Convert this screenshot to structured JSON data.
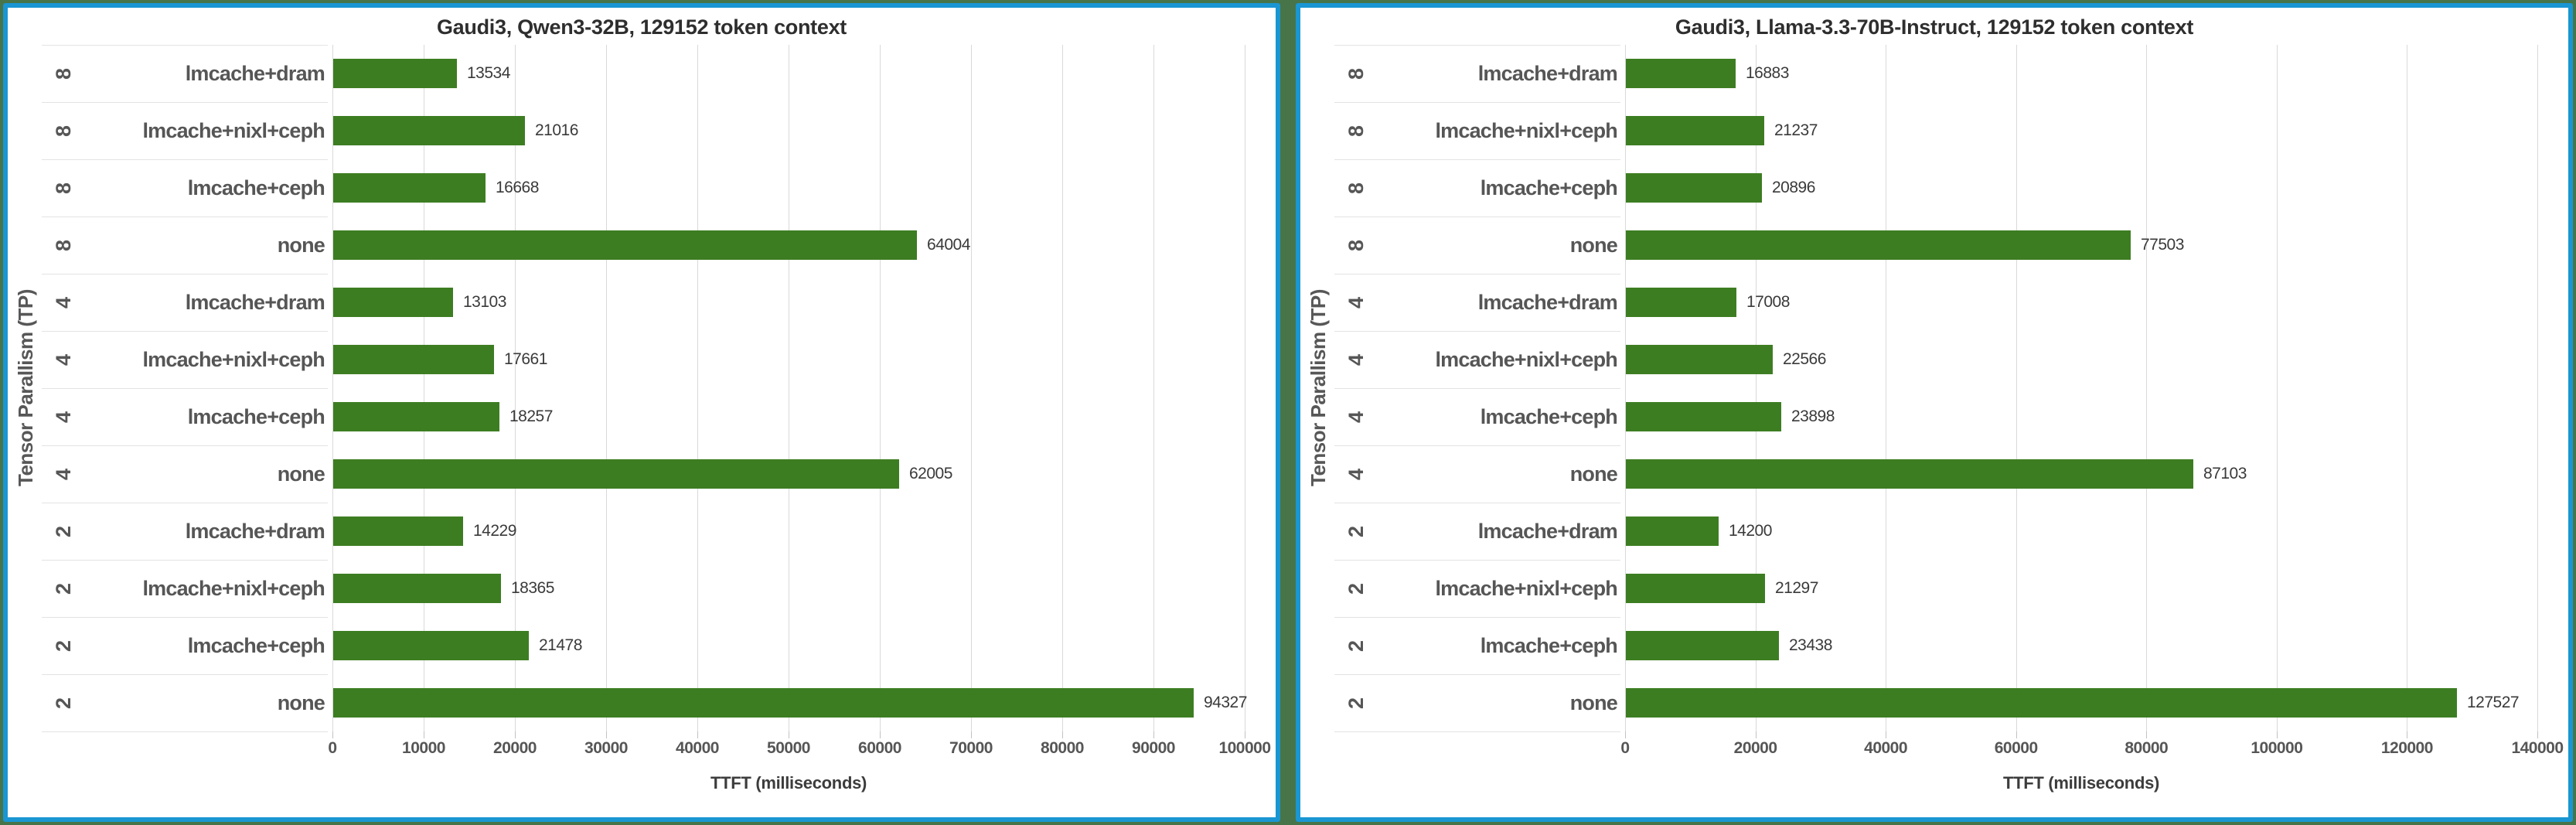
{
  "page_background": "#487449",
  "panel_border_color": "#1a96d3",
  "bar_color": "#3d7d22",
  "chart_data": [
    {
      "type": "bar",
      "orientation": "horizontal",
      "title": "Gaudi3, Qwen3-32B, 129152 token context",
      "xlabel": "TTFT (milliseconds)",
      "ylabel": "Tensor Parallism (TP)",
      "xlim": [
        0,
        100000
      ],
      "x_ticks": [
        0,
        10000,
        20000,
        30000,
        40000,
        50000,
        60000,
        70000,
        80000,
        90000,
        100000
      ],
      "grid": true,
      "legend": "none",
      "bar_color": "#3d7d22",
      "rows": [
        {
          "tp": "8",
          "config": "lmcache+dram",
          "value": 13534
        },
        {
          "tp": "8",
          "config": "lmcache+nixl+ceph",
          "value": 21016
        },
        {
          "tp": "8",
          "config": "lmcache+ceph",
          "value": 16668
        },
        {
          "tp": "8",
          "config": "none",
          "value": 64004
        },
        {
          "tp": "4",
          "config": "lmcache+dram",
          "value": 13103
        },
        {
          "tp": "4",
          "config": "lmcache+nixl+ceph",
          "value": 17661
        },
        {
          "tp": "4",
          "config": "lmcache+ceph",
          "value": 18257
        },
        {
          "tp": "4",
          "config": "none",
          "value": 62005
        },
        {
          "tp": "2",
          "config": "lmcache+dram",
          "value": 14229
        },
        {
          "tp": "2",
          "config": "lmcache+nixl+ceph",
          "value": 18365
        },
        {
          "tp": "2",
          "config": "lmcache+ceph",
          "value": 21478
        },
        {
          "tp": "2",
          "config": "none",
          "value": 94327
        }
      ]
    },
    {
      "type": "bar",
      "orientation": "horizontal",
      "title": "Gaudi3, Llama-3.3-70B-Instruct, 129152 token context",
      "xlabel": "TTFT (milliseconds)",
      "ylabel": "Tensor Parallism (TP)",
      "xlim": [
        0,
        140000
      ],
      "x_ticks": [
        0,
        20000,
        40000,
        60000,
        80000,
        100000,
        120000,
        140000
      ],
      "grid": true,
      "legend": "none",
      "bar_color": "#3d7d22",
      "rows": [
        {
          "tp": "8",
          "config": "lmcache+dram",
          "value": 16883
        },
        {
          "tp": "8",
          "config": "lmcache+nixl+ceph",
          "value": 21237
        },
        {
          "tp": "8",
          "config": "lmcache+ceph",
          "value": 20896
        },
        {
          "tp": "8",
          "config": "none",
          "value": 77503
        },
        {
          "tp": "4",
          "config": "lmcache+dram",
          "value": 17008
        },
        {
          "tp": "4",
          "config": "lmcache+nixl+ceph",
          "value": 22566
        },
        {
          "tp": "4",
          "config": "lmcache+ceph",
          "value": 23898
        },
        {
          "tp": "4",
          "config": "none",
          "value": 87103
        },
        {
          "tp": "2",
          "config": "lmcache+dram",
          "value": 14200
        },
        {
          "tp": "2",
          "config": "lmcache+nixl+ceph",
          "value": 21297
        },
        {
          "tp": "2",
          "config": "lmcache+ceph",
          "value": 23438
        },
        {
          "tp": "2",
          "config": "none",
          "value": 127527
        }
      ]
    }
  ]
}
